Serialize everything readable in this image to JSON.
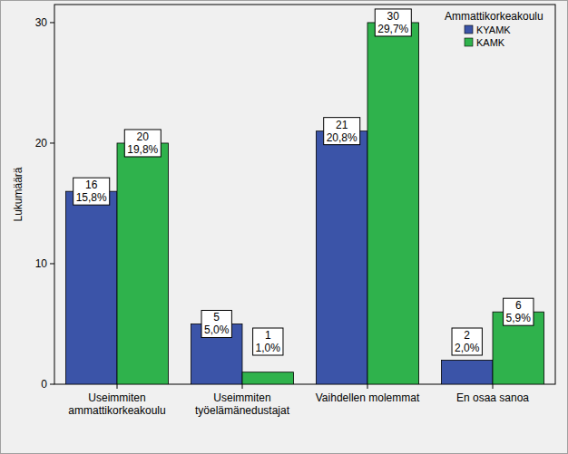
{
  "chart_data": {
    "type": "bar",
    "y_label": "Lukumäärä",
    "categories": [
      "Useimmiten ammattikorkeakoulu",
      "Useimmiten työelämänedustajat",
      "Vaihdellen molemmat",
      "En osaa sanoa"
    ],
    "legend_title": "Ammattikorkeakoulu",
    "series": [
      {
        "name": "KYAMK",
        "color": "#3b54a8",
        "values": [
          16,
          5,
          21,
          2
        ],
        "percent_labels": [
          "15,8%",
          "5,0%",
          "20,8%",
          "2,0%"
        ]
      },
      {
        "name": "KAMK",
        "color": "#2fb24c",
        "values": [
          20,
          1,
          30,
          6
        ],
        "percent_labels": [
          "19,8%",
          "1,0%",
          "29,7%",
          "5,9%"
        ]
      }
    ],
    "ylim": [
      0,
      31.5
    ],
    "yticks": [
      0,
      10,
      20,
      30
    ],
    "grid": false,
    "legend": "upper right",
    "data_labels": true
  }
}
